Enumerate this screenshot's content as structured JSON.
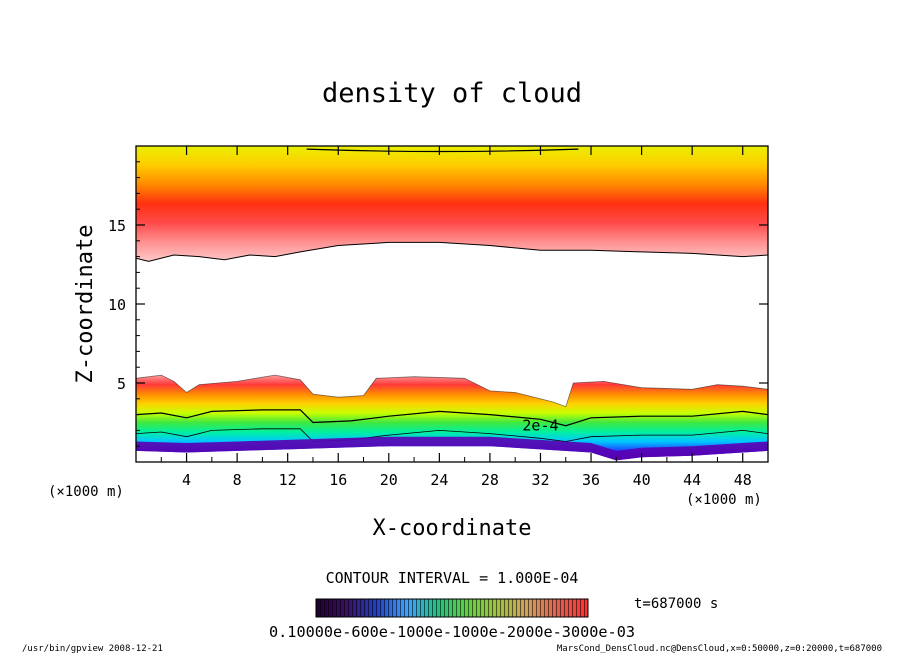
{
  "chart_data": {
    "type": "heatmap",
    "title": "density of cloud",
    "xlabel": "X-coordinate",
    "ylabel": "Z-coordinate",
    "x_unit_left": "(×1000 m)",
    "x_unit_right": "(×1000 m)",
    "xlim": [
      0,
      50
    ],
    "ylim": [
      0,
      20
    ],
    "x_ticks": [
      4,
      8,
      12,
      16,
      20,
      24,
      28,
      32,
      36,
      40,
      44,
      48
    ],
    "y_ticks": [
      5,
      10,
      15
    ],
    "contour_label": "2e-4",
    "contour_interval_text": "CONTOUR INTERVAL = 1.000E-04",
    "time_text": "t=687000 s",
    "colorbar_text": "0.10000e-600e-1000e-1000e-2000e-3000e-03",
    "footer_left": "/usr/bin/gpview  2008-12-21",
    "footer_right": "MarsCond_DensCloud.nc@DensCloud,x=0:50000,z=0:20000,t=687000",
    "upper_layer": {
      "top_z": 20,
      "bottom_z_by_x": [
        {
          "x": 0,
          "z": 12.9
        },
        {
          "x": 1,
          "z": 12.7
        },
        {
          "x": 3,
          "z": 13.1
        },
        {
          "x": 5,
          "z": 13.0
        },
        {
          "x": 7,
          "z": 12.8
        },
        {
          "x": 9,
          "z": 13.1
        },
        {
          "x": 11,
          "z": 13.0
        },
        {
          "x": 13,
          "z": 13.3
        },
        {
          "x": 16,
          "z": 13.7
        },
        {
          "x": 20,
          "z": 13.9
        },
        {
          "x": 24,
          "z": 13.9
        },
        {
          "x": 28,
          "z": 13.7
        },
        {
          "x": 32,
          "z": 13.4
        },
        {
          "x": 36,
          "z": 13.4
        },
        {
          "x": 40,
          "z": 13.3
        },
        {
          "x": 44,
          "z": 13.2
        },
        {
          "x": 48,
          "z": 13.0
        },
        {
          "x": 50,
          "z": 13.1
        }
      ]
    },
    "lower_layer": {
      "top_z_by_x": [
        {
          "x": 0,
          "z": 5.3
        },
        {
          "x": 2,
          "z": 5.5
        },
        {
          "x": 3,
          "z": 5.1
        },
        {
          "x": 4,
          "z": 4.4
        },
        {
          "x": 5,
          "z": 4.9
        },
        {
          "x": 8,
          "z": 5.1
        },
        {
          "x": 11,
          "z": 5.5
        },
        {
          "x": 13,
          "z": 5.2
        },
        {
          "x": 14,
          "z": 4.3
        },
        {
          "x": 16,
          "z": 4.1
        },
        {
          "x": 18,
          "z": 4.2
        },
        {
          "x": 19,
          "z": 5.3
        },
        {
          "x": 22,
          "z": 5.4
        },
        {
          "x": 26,
          "z": 5.3
        },
        {
          "x": 28,
          "z": 4.5
        },
        {
          "x": 30,
          "z": 4.4
        },
        {
          "x": 33,
          "z": 3.8
        },
        {
          "x": 34,
          "z": 3.5
        },
        {
          "x": 34.6,
          "z": 5.0
        },
        {
          "x": 37,
          "z": 5.1
        },
        {
          "x": 40,
          "z": 4.7
        },
        {
          "x": 44,
          "z": 4.6
        },
        {
          "x": 46,
          "z": 4.9
        },
        {
          "x": 48,
          "z": 4.8
        },
        {
          "x": 50,
          "z": 4.6
        }
      ],
      "contour_2e4_z_by_x": [
        {
          "x": 0,
          "z": 3.0
        },
        {
          "x": 2,
          "z": 3.1
        },
        {
          "x": 4,
          "z": 2.8
        },
        {
          "x": 6,
          "z": 3.2
        },
        {
          "x": 10,
          "z": 3.3
        },
        {
          "x": 13,
          "z": 3.3
        },
        {
          "x": 14,
          "z": 2.5
        },
        {
          "x": 17,
          "z": 2.6
        },
        {
          "x": 20,
          "z": 2.9
        },
        {
          "x": 24,
          "z": 3.2
        },
        {
          "x": 28,
          "z": 3.0
        },
        {
          "x": 32,
          "z": 2.7
        },
        {
          "x": 34,
          "z": 2.3
        },
        {
          "x": 36,
          "z": 2.8
        },
        {
          "x": 40,
          "z": 2.9
        },
        {
          "x": 44,
          "z": 2.9
        },
        {
          "x": 48,
          "z": 3.2
        },
        {
          "x": 50,
          "z": 3.0
        }
      ],
      "bottom_z_by_x": [
        {
          "x": 0,
          "z": 0.7
        },
        {
          "x": 4,
          "z": 0.6
        },
        {
          "x": 8,
          "z": 0.7
        },
        {
          "x": 12,
          "z": 0.8
        },
        {
          "x": 16,
          "z": 0.9
        },
        {
          "x": 20,
          "z": 1.0
        },
        {
          "x": 24,
          "z": 1.0
        },
        {
          "x": 28,
          "z": 1.0
        },
        {
          "x": 32,
          "z": 0.8
        },
        {
          "x": 36,
          "z": 0.6
        },
        {
          "x": 38,
          "z": 0.1
        },
        {
          "x": 40,
          "z": 0.3
        },
        {
          "x": 44,
          "z": 0.4
        },
        {
          "x": 48,
          "z": 0.6
        },
        {
          "x": 50,
          "z": 0.7
        }
      ]
    }
  },
  "colors": {
    "upper_band_stops": [
      "#e8f000",
      "#ffcc00",
      "#ff8a00",
      "#ff3010",
      "#ff4a4a",
      "#ff9090",
      "#ffc8c8"
    ],
    "lower_band_stops": [
      "#ff9c9c",
      "#ff3a3a",
      "#ff8a00",
      "#ffd000",
      "#c8ff00",
      "#40e840",
      "#00f0a0",
      "#00c8ff",
      "#2040ff",
      "#5a00b0"
    ],
    "colorbar_stops": [
      "#200030",
      "#3a1060",
      "#2040c0",
      "#40a0ff",
      "#20c080",
      "#60d040",
      "#a0c040",
      "#d0a060",
      "#e06050",
      "#ff3030"
    ]
  }
}
